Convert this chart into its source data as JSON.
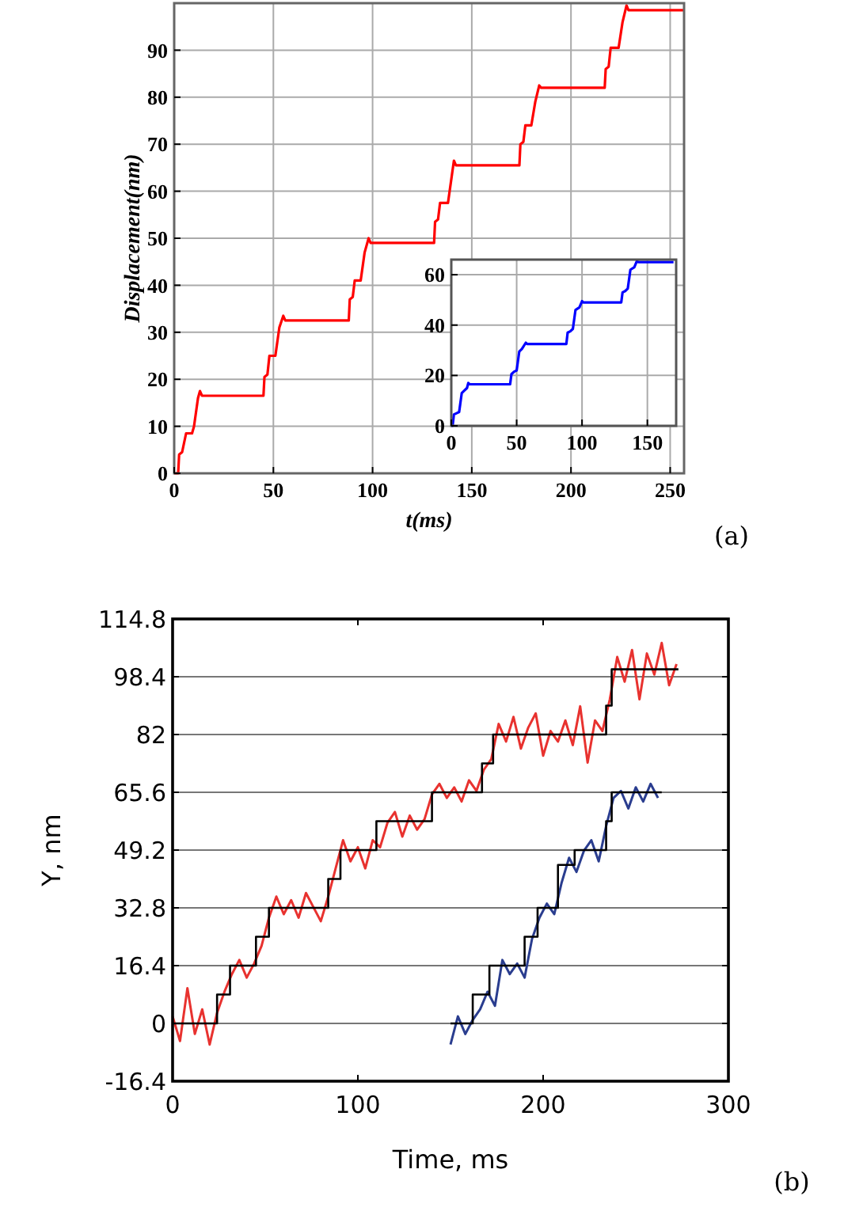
{
  "chart_data": [
    {
      "type": "line",
      "xlabel": "t(ms)",
      "ylabel": "Displacement(nm)",
      "annotations": [
        "(a)"
      ],
      "grid": true,
      "xlim": [
        0,
        257
      ],
      "ylim": [
        0,
        100
      ],
      "xticks": [
        0,
        50,
        100,
        150,
        200,
        250
      ],
      "yticks": [
        0,
        10,
        20,
        30,
        40,
        50,
        60,
        70,
        80,
        90
      ],
      "series": [
        {
          "color": "#ff0000",
          "x": [
            0,
            2,
            2.5,
            4,
            6,
            9,
            10,
            12,
            13,
            14,
            45,
            45.5,
            47,
            48,
            51,
            53,
            55,
            56,
            88,
            88.5,
            90,
            91,
            94,
            96,
            98,
            99,
            131,
            131.5,
            133,
            134,
            138,
            140,
            141,
            142,
            174,
            174.5,
            176,
            177,
            180,
            182,
            184,
            185,
            217,
            217.5,
            219,
            220,
            224,
            226,
            228,
            229,
            257
          ],
          "values": [
            0,
            0,
            4,
            4.5,
            8.5,
            8.5,
            10,
            16,
            17.5,
            16.5,
            16.5,
            20.5,
            21,
            25,
            25,
            31,
            33.5,
            32.5,
            32.5,
            37,
            37.5,
            41,
            41,
            47,
            50,
            49,
            49,
            53.5,
            54,
            57.5,
            57.5,
            63.5,
            66.5,
            65.5,
            65.5,
            70,
            70.5,
            74,
            74,
            79,
            82.5,
            82,
            82,
            86,
            86.5,
            90.5,
            90.5,
            96,
            99.5,
            98.5,
            98.5
          ]
        }
      ]
    },
    {
      "type": "line",
      "grid": true,
      "xlim": [
        0,
        172
      ],
      "ylim": [
        0,
        66
      ],
      "xticks": [
        0,
        50,
        100,
        150
      ],
      "yticks": [
        0,
        20,
        40,
        60
      ],
      "series": [
        {
          "color": "#0000ff",
          "x": [
            0,
            1,
            2,
            4,
            6,
            8,
            10,
            12,
            13,
            14,
            45,
            46,
            48,
            50,
            52,
            54,
            57,
            58,
            88,
            89,
            91,
            93,
            95,
            98,
            100,
            101,
            130,
            131,
            133,
            135,
            137,
            140,
            142,
            143,
            170
          ],
          "values": [
            0,
            0,
            4.5,
            5,
            5.5,
            13,
            14,
            15,
            17,
            16.5,
            16.5,
            20.5,
            21.5,
            22,
            29.5,
            30.5,
            33,
            32.5,
            32.5,
            37,
            37.5,
            38.5,
            46,
            47,
            49.5,
            49,
            49,
            53,
            53.5,
            54.5,
            62,
            63,
            65.5,
            65,
            65
          ]
        }
      ]
    },
    {
      "type": "line",
      "xlabel": "Time, ms",
      "ylabel": "Y, nm",
      "annotations": [
        "(b)"
      ],
      "grid": "y",
      "xlim": [
        0,
        300
      ],
      "ylim": [
        -16.4,
        114.8
      ],
      "xticks": [
        0,
        100,
        200,
        300
      ],
      "yticks": [
        -16.4,
        0,
        16.4,
        32.8,
        49.2,
        65.6,
        82,
        98.4,
        114.8
      ],
      "series": [
        {
          "color": "#e8322f",
          "x": [
            0,
            4,
            8,
            12,
            16,
            20,
            24,
            28,
            32,
            36,
            40,
            44,
            48,
            52,
            56,
            60,
            64,
            68,
            72,
            76,
            80,
            84,
            88,
            92,
            96,
            100,
            104,
            108,
            112,
            116,
            120,
            124,
            128,
            132,
            136,
            140,
            144,
            148,
            152,
            156,
            160,
            164,
            168,
            172,
            176,
            180,
            184,
            188,
            192,
            196,
            200,
            204,
            208,
            212,
            216,
            220,
            224,
            228,
            232,
            236,
            240,
            244,
            248,
            252,
            256,
            260,
            264,
            268,
            272
          ],
          "values": [
            2,
            -5,
            10,
            -3,
            4,
            -6,
            3,
            9,
            14,
            18,
            13,
            17,
            22,
            30,
            36,
            31,
            35,
            30,
            37,
            33,
            29,
            36,
            44,
            52,
            46,
            50,
            44,
            52,
            50,
            57,
            60,
            53,
            59,
            55,
            58,
            65,
            68,
            64,
            67,
            63,
            69,
            66,
            72,
            75,
            85,
            80,
            87,
            78,
            84,
            88,
            76,
            83,
            80,
            86,
            79,
            90,
            74,
            86,
            83,
            92,
            104,
            97,
            106,
            92,
            105,
            99,
            108,
            96,
            102
          ]
        },
        {
          "type": "step",
          "color": "#000000",
          "x": [
            0,
            24,
            31,
            45,
            52,
            84,
            90.6,
            110,
            140,
            167,
            173,
            234,
            237,
            273
          ],
          "values": [
            0,
            8.2,
            16.4,
            24.6,
            32.8,
            41,
            49.2,
            57.4,
            65.6,
            73.8,
            82,
            90.2,
            100.5,
            100.5
          ]
        },
        {
          "color": "#2a3d8f",
          "x": [
            150,
            154,
            158,
            162,
            166,
            170,
            174,
            178,
            182,
            186,
            190,
            194,
            198,
            202,
            206,
            210,
            214,
            218,
            222,
            226,
            230,
            234,
            238,
            242,
            246,
            250,
            254,
            258,
            262
          ],
          "values": [
            -6,
            2,
            -3,
            1,
            4,
            9,
            5,
            18,
            14,
            17,
            13,
            24,
            30,
            34,
            31,
            40,
            47,
            43,
            49,
            52,
            46,
            56,
            64,
            66,
            61,
            67,
            63,
            68,
            64
          ]
        },
        {
          "type": "step",
          "color": "#000000",
          "x": [
            150,
            162,
            171,
            190,
            197,
            208,
            217,
            234,
            237,
            264
          ],
          "values": [
            0,
            8.2,
            16.4,
            24.6,
            32.8,
            45,
            49.2,
            57.4,
            65.6,
            65.6
          ]
        }
      ]
    }
  ]
}
